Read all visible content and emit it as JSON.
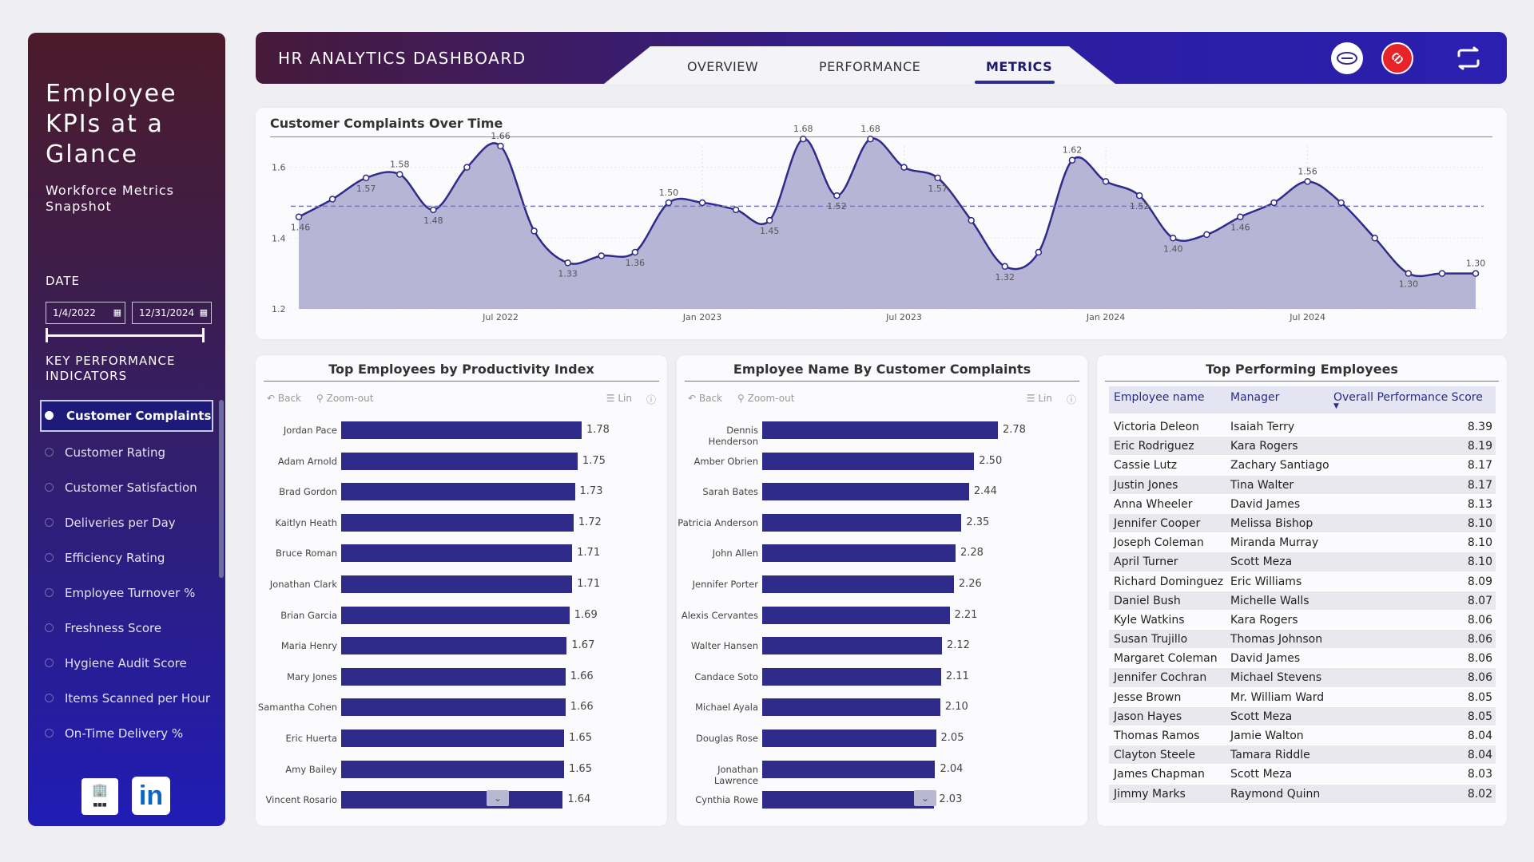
{
  "sidebar": {
    "title": "Employee KPIs at a Glance",
    "subtitle": "Workforce Metrics Snapshot",
    "date_label": "DATE",
    "date_start": "1/4/2022",
    "date_end": "12/31/2024",
    "kpi_label": "KEY PERFORMANCE INDICATORS",
    "kpis": [
      "Customer Complaints",
      "Customer Rating",
      "Customer Satisfaction",
      "Deliveries per Day",
      "Efficiency Rating",
      "Employee Turnover %",
      "Freshness Score",
      "Hygiene Audit Score",
      "Items Scanned per Hour",
      "On-Time Delivery %"
    ],
    "active_kpi": 0
  },
  "header": {
    "title": "HR ANALYTICS DASHBOARD",
    "tabs": [
      "OVERVIEW",
      "PERFORMANCE",
      "METRICS"
    ],
    "active_tab": 2
  },
  "line_chart": {
    "title": "Customer Complaints Over Time"
  },
  "chart_data": [
    {
      "type": "area",
      "title": "Customer Complaints Over Time",
      "ylim": [
        1.2,
        1.66
      ],
      "yticks": [
        1.2,
        1.4,
        1.6
      ],
      "xticks": [
        "Jul 2022",
        "Jan 2023",
        "Jul 2023",
        "Jan 2024",
        "Jul 2024"
      ],
      "average_line": 1.49,
      "x": [
        "Jan 2022",
        "Feb 2022",
        "Mar 2022",
        "Apr 2022",
        "May 2022",
        "Jun 2022",
        "Jul 2022",
        "Aug 2022",
        "Sep 2022",
        "Oct 2022",
        "Nov 2022",
        "Dec 2022",
        "Jan 2023",
        "Feb 2023",
        "Mar 2023",
        "Apr 2023",
        "May 2023",
        "Jun 2023",
        "Jul 2023",
        "Aug 2023",
        "Sep 2023",
        "Oct 2023",
        "Nov 2023",
        "Dec 2023",
        "Jan 2024",
        "Feb 2024",
        "Mar 2024",
        "Apr 2024",
        "May 2024",
        "Jun 2024",
        "Jul 2024",
        "Aug 2024",
        "Sep 2024",
        "Oct 2024",
        "Nov 2024",
        "Dec 2024"
      ],
      "values": [
        1.46,
        1.51,
        1.57,
        1.58,
        1.48,
        1.6,
        1.66,
        1.42,
        1.33,
        1.35,
        1.36,
        1.5,
        1.5,
        1.48,
        1.45,
        1.68,
        1.52,
        1.68,
        1.6,
        1.57,
        1.45,
        1.32,
        1.36,
        1.62,
        1.56,
        1.52,
        1.4,
        1.41,
        1.46,
        1.5,
        1.56,
        1.5,
        1.4,
        1.3,
        1.3,
        1.3
      ],
      "point_labels": [
        "1.46",
        "",
        "1.57",
        "1.58",
        "1.48",
        "",
        "1.66",
        "",
        "1.33",
        "",
        "1.36",
        "1.50",
        "",
        "",
        "1.45",
        "1.68",
        "1.52",
        "1.68",
        "",
        "1.57",
        "",
        "1.32",
        "",
        "1.62",
        "",
        "1.52",
        "1.40",
        "",
        "1.46",
        "",
        "1.56",
        "",
        "",
        "1.30",
        "",
        "1.30"
      ]
    },
    {
      "type": "bar",
      "title": "Top Employees by Productivity Index",
      "categories": [
        "Jordan Pace",
        "Adam Arnold",
        "Brad Gordon",
        "Kaitlyn Heath",
        "Bruce Roman",
        "Jonathan Clark",
        "Brian Garcia",
        "Maria Henry",
        "Mary Jones",
        "Samantha Cohen",
        "Eric Huerta",
        "Amy Bailey",
        "Vincent Rosario"
      ],
      "values": [
        1.78,
        1.75,
        1.73,
        1.72,
        1.71,
        1.71,
        1.69,
        1.67,
        1.66,
        1.66,
        1.65,
        1.65,
        1.64
      ],
      "labels": [
        "1.78",
        "1.75",
        "1.73",
        "1.72",
        "1.71",
        "1.71",
        "1.69",
        "1.67",
        "1.66",
        "1.66",
        "1.65",
        "1.65",
        "1.64"
      ]
    },
    {
      "type": "bar",
      "title": "Employee Name By Customer Complaints",
      "categories": [
        "Dennis Henderson",
        "Amber Obrien",
        "Sarah Bates",
        "Patricia Anderson",
        "John Allen",
        "Jennifer Porter",
        "Alexis Cervantes",
        "Walter Hansen",
        "Candace Soto",
        "Michael Ayala",
        "Douglas Rose",
        "Jonathan Lawrence",
        "Cynthia Rowe"
      ],
      "values": [
        2.78,
        2.5,
        2.44,
        2.35,
        2.28,
        2.26,
        2.21,
        2.12,
        2.11,
        2.1,
        2.05,
        2.04,
        2.03
      ],
      "labels": [
        "2.78",
        "2.50",
        "2.44",
        "2.35",
        "2.28",
        "2.26",
        "2.21",
        "2.12",
        "2.11",
        "2.10",
        "2.05",
        "2.04",
        "2.03"
      ]
    }
  ],
  "toolbar": {
    "back": "Back",
    "zoom": "Zoom-out",
    "lin": "Lin"
  },
  "table": {
    "title": "Top Performing Employees",
    "columns": [
      "Employee name",
      "Manager",
      "Overall Performance Score"
    ],
    "rows": [
      [
        "Victoria Deleon",
        "Isaiah Terry",
        "8.39"
      ],
      [
        "Eric Rodriguez",
        "Kara Rogers",
        "8.19"
      ],
      [
        "Cassie Lutz",
        "Zachary Santiago",
        "8.17"
      ],
      [
        "Justin Jones",
        "Tina Walter",
        "8.17"
      ],
      [
        "Anna Wheeler",
        "David James",
        "8.13"
      ],
      [
        "Jennifer Cooper",
        "Melissa Bishop",
        "8.10"
      ],
      [
        "Joseph Coleman",
        "Miranda Murray",
        "8.10"
      ],
      [
        "April Turner",
        "Scott Meza",
        "8.10"
      ],
      [
        "Richard Dominguez",
        "Eric Williams",
        "8.09"
      ],
      [
        "Daniel Bush",
        "Michelle Walls",
        "8.07"
      ],
      [
        "Kyle Watkins",
        "Kara Rogers",
        "8.06"
      ],
      [
        "Susan Trujillo",
        "Thomas Johnson",
        "8.06"
      ],
      [
        "Margaret Coleman",
        "David James",
        "8.06"
      ],
      [
        "Jennifer Cochran",
        "Michael Stevens",
        "8.06"
      ],
      [
        "Jesse Brown",
        "Mr. William Ward",
        "8.05"
      ],
      [
        "Jason Hayes",
        "Scott Meza",
        "8.05"
      ],
      [
        "Thomas Ramos",
        "Jamie Walton",
        "8.04"
      ],
      [
        "Clayton Steele",
        "Tamara Riddle",
        "8.04"
      ],
      [
        "James Chapman",
        "Scott Meza",
        "8.03"
      ],
      [
        "Jimmy Marks",
        "Raymond Quinn",
        "8.02"
      ]
    ]
  },
  "colors": {
    "bar": "#2e2b8a",
    "area_fill": "#aaa8cf",
    "line": "#2e2b8a",
    "avg_line": "#7a78c0"
  },
  "icons": [
    "date-calendar-icon",
    "linkedin-icon",
    "brand-logo-icon",
    "badge-icon",
    "link-icon",
    "refresh-icon",
    "back-icon",
    "zoom-out-icon",
    "list-icon",
    "help-icon",
    "chevron-down-icon"
  ]
}
